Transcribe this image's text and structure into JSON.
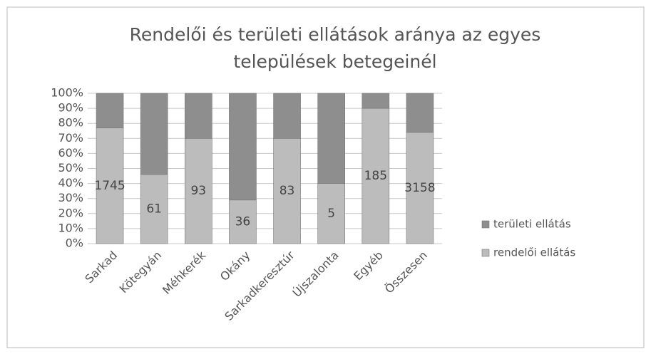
{
  "chart_data": {
    "type": "stacked_bar_100",
    "title": "Rendelői és területi ellátások aránya az egyes",
    "title_line2": "települések betegeinél",
    "categories": [
      "Sarkad",
      "Kötegyán",
      "Méhkerék",
      "Okány",
      "Sarkadkeresztúr",
      "Újszalonta",
      "Egyéb",
      "Összesen"
    ],
    "series": [
      {
        "name": "rendelői ellátás",
        "color": "#bcbcbc",
        "values": [
          77,
          46,
          70,
          29,
          70,
          40,
          90,
          74
        ],
        "counts": [
          1745,
          61,
          93,
          36,
          83,
          5,
          185,
          3158
        ]
      },
      {
        "name": "területi ellátás",
        "color": "#8e8e8e",
        "values": [
          23,
          54,
          30,
          71,
          30,
          60,
          10,
          26
        ]
      }
    ],
    "ylim": [
      0,
      100
    ],
    "yticks": [
      {
        "value": 0,
        "label": "0%"
      },
      {
        "value": 10,
        "label": "10%"
      },
      {
        "value": 20,
        "label": "20%"
      },
      {
        "value": 30,
        "label": "30%"
      },
      {
        "value": 40,
        "label": "40%"
      },
      {
        "value": 50,
        "label": "50%"
      },
      {
        "value": 60,
        "label": "60%"
      },
      {
        "value": 70,
        "label": "70%"
      },
      {
        "value": 80,
        "label": "80%"
      },
      {
        "value": 90,
        "label": "90%"
      },
      {
        "value": 100,
        "label": "100%"
      }
    ],
    "grid": true,
    "legend": "right"
  }
}
